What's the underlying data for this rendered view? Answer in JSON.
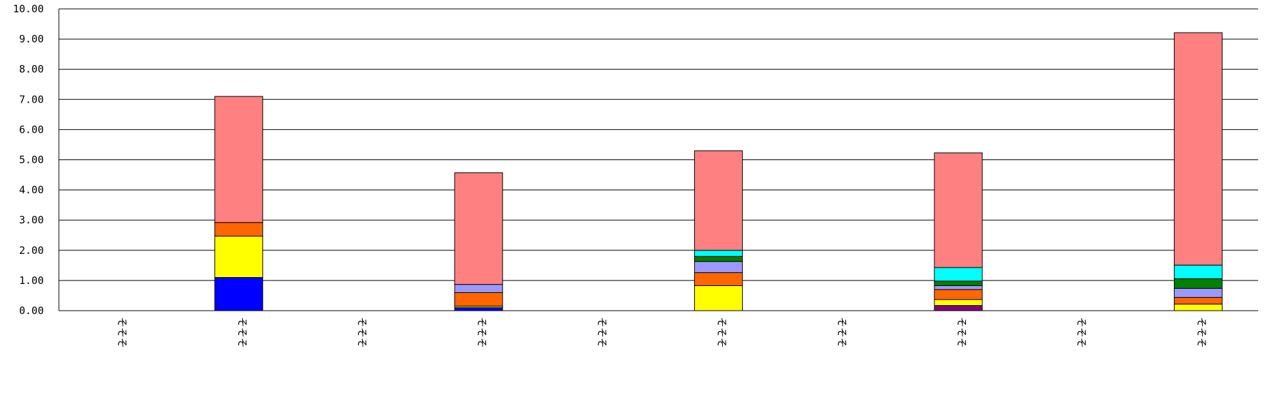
{
  "chart_data": {
    "type": "bar",
    "stacked": true,
    "title": "",
    "xlabel": "",
    "ylabel": "",
    "ylim": [
      0,
      10
    ],
    "y_ticks": [
      "0.00",
      "1.00",
      "2.00",
      "3.00",
      "4.00",
      "5.00",
      "6.00",
      "7.00",
      "8.00",
      "9.00",
      "10.00"
    ],
    "grid": true,
    "legend": "none",
    "categories": [
      "そそそ",
      "そそそ",
      "そそそ",
      "そそそ",
      "そそそ",
      "そそそ",
      "そそそ",
      "そそそ",
      "そそそ",
      "そそそ"
    ],
    "series": [
      {
        "color": "#0000ff",
        "values": [
          0,
          1.1,
          0,
          0.1,
          0,
          0,
          0,
          0,
          0,
          0
        ]
      },
      {
        "color": "#800080",
        "values": [
          0,
          0,
          0,
          0,
          0,
          0,
          0,
          0.17,
          0,
          0
        ]
      },
      {
        "color": "#ffff00",
        "values": [
          0,
          1.37,
          0,
          0.05,
          0,
          0.83,
          0,
          0.2,
          0,
          0.22
        ]
      },
      {
        "color": "#ff6600",
        "values": [
          0,
          0.45,
          0,
          0.45,
          0,
          0.43,
          0,
          0.33,
          0,
          0.22
        ]
      },
      {
        "color": "#9999ff",
        "values": [
          0,
          0,
          0,
          0.27,
          0,
          0.37,
          0,
          0.13,
          0,
          0.3
        ]
      },
      {
        "color": "#008000",
        "values": [
          0,
          0,
          0,
          0,
          0,
          0.17,
          0,
          0.15,
          0,
          0.32
        ]
      },
      {
        "color": "#00ffff",
        "values": [
          0,
          0,
          0,
          0,
          0,
          0.2,
          0,
          0.45,
          0,
          0.45
        ]
      },
      {
        "color": "#ff8080",
        "values": [
          0,
          4.18,
          0,
          3.7,
          0,
          3.3,
          0,
          3.8,
          0,
          7.7
        ]
      }
    ]
  }
}
